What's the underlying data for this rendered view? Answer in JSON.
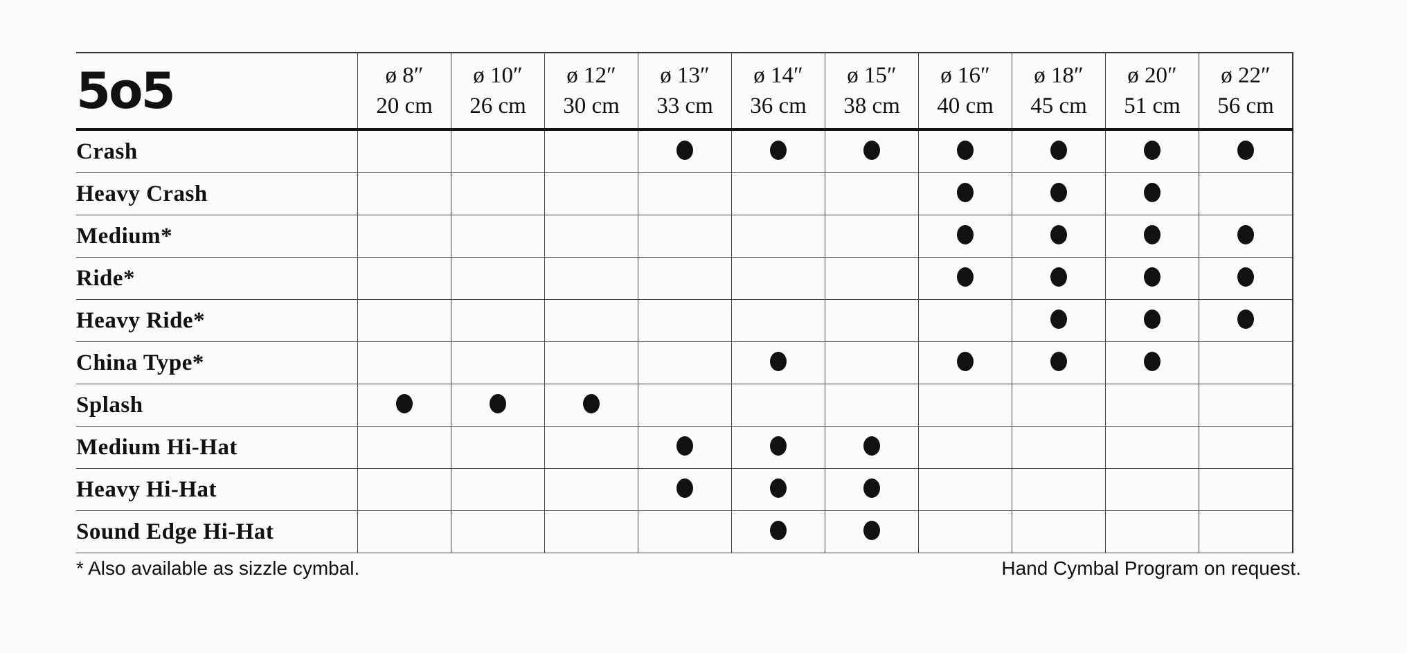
{
  "brand": "5o5",
  "columns": [
    {
      "inch": "ø 8″",
      "cm": "20 cm"
    },
    {
      "inch": "ø 10″",
      "cm": "26 cm"
    },
    {
      "inch": "ø 12″",
      "cm": "30 cm"
    },
    {
      "inch": "ø 13″",
      "cm": "33 cm"
    },
    {
      "inch": "ø 14″",
      "cm": "36 cm"
    },
    {
      "inch": "ø 15″",
      "cm": "38 cm"
    },
    {
      "inch": "ø 16″",
      "cm": "40 cm"
    },
    {
      "inch": "ø 18″",
      "cm": "45 cm"
    },
    {
      "inch": "ø 20″",
      "cm": "51 cm"
    },
    {
      "inch": "ø 22″",
      "cm": "56 cm"
    }
  ],
  "rows": [
    {
      "label": "Crash",
      "avail": [
        0,
        0,
        0,
        1,
        1,
        1,
        1,
        1,
        1,
        1
      ]
    },
    {
      "label": "Heavy Crash",
      "avail": [
        0,
        0,
        0,
        0,
        0,
        0,
        1,
        1,
        1,
        0
      ]
    },
    {
      "label": "Medium*",
      "avail": [
        0,
        0,
        0,
        0,
        0,
        0,
        1,
        1,
        1,
        1
      ]
    },
    {
      "label": "Ride*",
      "avail": [
        0,
        0,
        0,
        0,
        0,
        0,
        1,
        1,
        1,
        1
      ]
    },
    {
      "label": "Heavy Ride*",
      "avail": [
        0,
        0,
        0,
        0,
        0,
        0,
        0,
        1,
        1,
        1
      ]
    },
    {
      "label": "China Type*",
      "avail": [
        0,
        0,
        0,
        0,
        1,
        0,
        1,
        1,
        1,
        0
      ]
    },
    {
      "label": "Splash",
      "avail": [
        1,
        1,
        1,
        0,
        0,
        0,
        0,
        0,
        0,
        0
      ]
    },
    {
      "label": "Medium Hi-Hat",
      "avail": [
        0,
        0,
        0,
        1,
        1,
        1,
        0,
        0,
        0,
        0
      ]
    },
    {
      "label": "Heavy Hi-Hat",
      "avail": [
        0,
        0,
        0,
        1,
        1,
        1,
        0,
        0,
        0,
        0
      ]
    },
    {
      "label": "Sound Edge Hi-Hat",
      "avail": [
        0,
        0,
        0,
        0,
        1,
        1,
        0,
        0,
        0,
        0
      ]
    }
  ],
  "footnote_left": "* Also available as sizzle cymbal.",
  "footnote_right": "Hand Cymbal Program on request."
}
